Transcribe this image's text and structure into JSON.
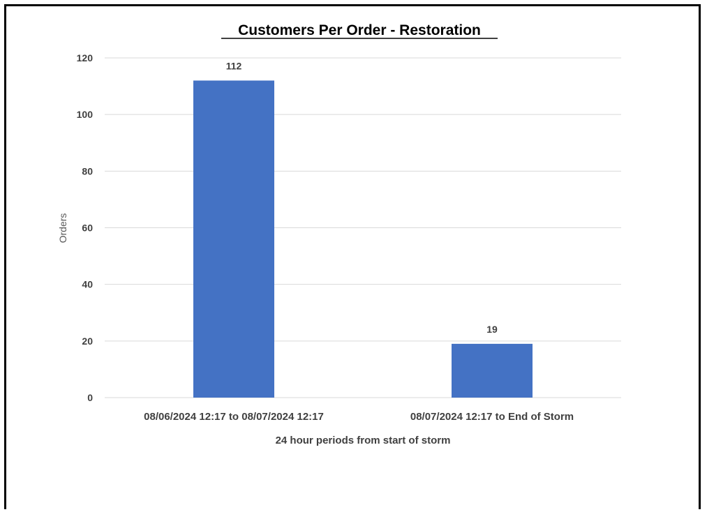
{
  "chart_data": {
    "type": "bar",
    "title": "Customers Per Order - Restoration",
    "xlabel": "24 hour periods from start of storm",
    "ylabel": "Orders",
    "categories": [
      "08/06/2024 12:17 to 08/07/2024 12:17",
      "08/07/2024 12:17 to End of Storm"
    ],
    "values": [
      112,
      19
    ],
    "data_labels": [
      "112",
      "19"
    ],
    "ylim": [
      0,
      120
    ],
    "yticks": [
      0,
      20,
      40,
      60,
      80,
      100,
      120
    ],
    "grid": true,
    "legend": "none",
    "bar_color": "#4472C4",
    "grid_color": "#D9D9D9"
  }
}
